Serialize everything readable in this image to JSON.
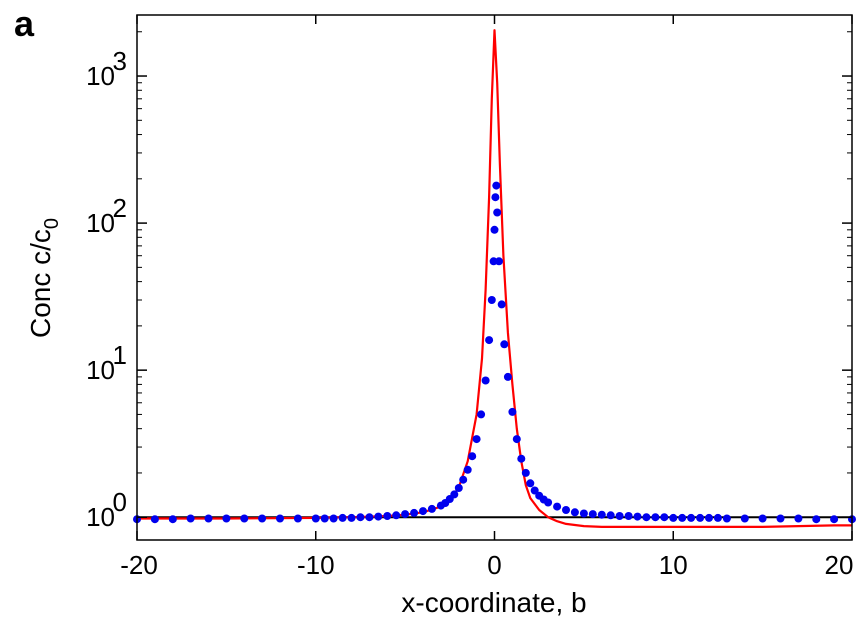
{
  "panel_label": "a",
  "chart_data": {
    "type": "line",
    "title": "",
    "xlabel": "x-coordinate, b",
    "ylabel_main": "Conc c/c",
    "ylabel_sub": "0",
    "xlim": [
      -20,
      20
    ],
    "ylim": [
      0.7,
      2600
    ],
    "yscale": "log",
    "grid": false,
    "xticks": [
      -20,
      -10,
      0,
      10,
      20
    ],
    "xtick_labels": [
      "-20",
      "-10",
      "0",
      "10",
      "20"
    ],
    "yticks": [
      1,
      10,
      100,
      1000
    ],
    "ytick_labels": [
      {
        "base": "10",
        "exp": "0"
      },
      {
        "base": "10",
        "exp": "1"
      },
      {
        "base": "10",
        "exp": "2"
      },
      {
        "base": "10",
        "exp": "3"
      }
    ],
    "series": [
      {
        "kind": "scatter",
        "color": "#0000ee",
        "points": [
          [
            -20,
            0.97
          ],
          [
            -19,
            0.97
          ],
          [
            -18,
            0.97
          ],
          [
            -17,
            0.98
          ],
          [
            -16,
            0.98
          ],
          [
            -15,
            0.98
          ],
          [
            -14,
            0.98
          ],
          [
            -13,
            0.98
          ],
          [
            -12,
            0.98
          ],
          [
            -11,
            0.98
          ],
          [
            -10,
            0.98
          ],
          [
            -9.5,
            0.98
          ],
          [
            -9,
            0.98
          ],
          [
            -8.5,
            0.99
          ],
          [
            -8,
            0.99
          ],
          [
            -7.5,
            1.0
          ],
          [
            -7,
            1.0
          ],
          [
            -6.5,
            1.01
          ],
          [
            -6,
            1.02
          ],
          [
            -5.5,
            1.03
          ],
          [
            -5,
            1.05
          ],
          [
            -4.5,
            1.07
          ],
          [
            -4,
            1.1
          ],
          [
            -3.5,
            1.14
          ],
          [
            -3,
            1.2
          ],
          [
            -2.75,
            1.25
          ],
          [
            -2.5,
            1.33
          ],
          [
            -2.25,
            1.43
          ],
          [
            -2,
            1.58
          ],
          [
            -1.75,
            1.8
          ],
          [
            -1.5,
            2.1
          ],
          [
            -1.25,
            2.6
          ],
          [
            -1,
            3.4
          ],
          [
            -0.75,
            5.0
          ],
          [
            -0.5,
            8.5
          ],
          [
            -0.3,
            16
          ],
          [
            -0.15,
            30
          ],
          [
            -0.05,
            55
          ],
          [
            0,
            90
          ],
          [
            0.05,
            150
          ],
          [
            0.1,
            180
          ],
          [
            0.15,
            118
          ],
          [
            0.25,
            55
          ],
          [
            0.4,
            28
          ],
          [
            0.55,
            15
          ],
          [
            0.75,
            9
          ],
          [
            1,
            5.2
          ],
          [
            1.25,
            3.4
          ],
          [
            1.5,
            2.5
          ],
          [
            1.75,
            2.0
          ],
          [
            2,
            1.7
          ],
          [
            2.25,
            1.52
          ],
          [
            2.5,
            1.4
          ],
          [
            2.75,
            1.32
          ],
          [
            3,
            1.26
          ],
          [
            3.5,
            1.18
          ],
          [
            4,
            1.12
          ],
          [
            4.5,
            1.08
          ],
          [
            5,
            1.06
          ],
          [
            5.5,
            1.05
          ],
          [
            6,
            1.04
          ],
          [
            6.5,
            1.03
          ],
          [
            7,
            1.02
          ],
          [
            7.5,
            1.02
          ],
          [
            8,
            1.01
          ],
          [
            8.5,
            1.0
          ],
          [
            9,
            1.0
          ],
          [
            9.5,
            1.0
          ],
          [
            10,
            0.99
          ],
          [
            10.5,
            0.99
          ],
          [
            11,
            0.99
          ],
          [
            11.5,
            0.99
          ],
          [
            12,
            0.99
          ],
          [
            12.5,
            0.99
          ],
          [
            13,
            0.98
          ],
          [
            14,
            0.98
          ],
          [
            15,
            0.98
          ],
          [
            16,
            0.98
          ],
          [
            17,
            0.98
          ],
          [
            18,
            0.97
          ],
          [
            19,
            0.97
          ],
          [
            20,
            0.97
          ]
        ]
      },
      {
        "kind": "line",
        "color": "#ff0000",
        "points": [
          [
            -20,
            0.98
          ],
          [
            -15,
            0.98
          ],
          [
            -10,
            0.99
          ],
          [
            -8,
            1.0
          ],
          [
            -6,
            1.02
          ],
          [
            -5,
            1.04
          ],
          [
            -4,
            1.08
          ],
          [
            -3,
            1.18
          ],
          [
            -2.5,
            1.3
          ],
          [
            -2,
            1.6
          ],
          [
            -1.5,
            2.4
          ],
          [
            -1,
            5
          ],
          [
            -0.7,
            12
          ],
          [
            -0.5,
            35
          ],
          [
            -0.3,
            150
          ],
          [
            -0.15,
            700
          ],
          [
            0,
            2050
          ],
          [
            0.15,
            900
          ],
          [
            0.3,
            250
          ],
          [
            0.5,
            60
          ],
          [
            0.75,
            18
          ],
          [
            1,
            8
          ],
          [
            1.25,
            4
          ],
          [
            1.5,
            2.4
          ],
          [
            1.75,
            1.65
          ],
          [
            2,
            1.35
          ],
          [
            2.5,
            1.12
          ],
          [
            3,
            1.0
          ],
          [
            3.5,
            0.94
          ],
          [
            4,
            0.9
          ],
          [
            5,
            0.87
          ],
          [
            6,
            0.86
          ],
          [
            7,
            0.86
          ],
          [
            10,
            0.86
          ],
          [
            13,
            0.86
          ],
          [
            15,
            0.86
          ],
          [
            17,
            0.87
          ],
          [
            19,
            0.88
          ],
          [
            20,
            0.88
          ]
        ]
      },
      {
        "kind": "line",
        "color": "#000000",
        "points": [
          [
            -20,
            1
          ],
          [
            20,
            1
          ]
        ]
      }
    ]
  }
}
